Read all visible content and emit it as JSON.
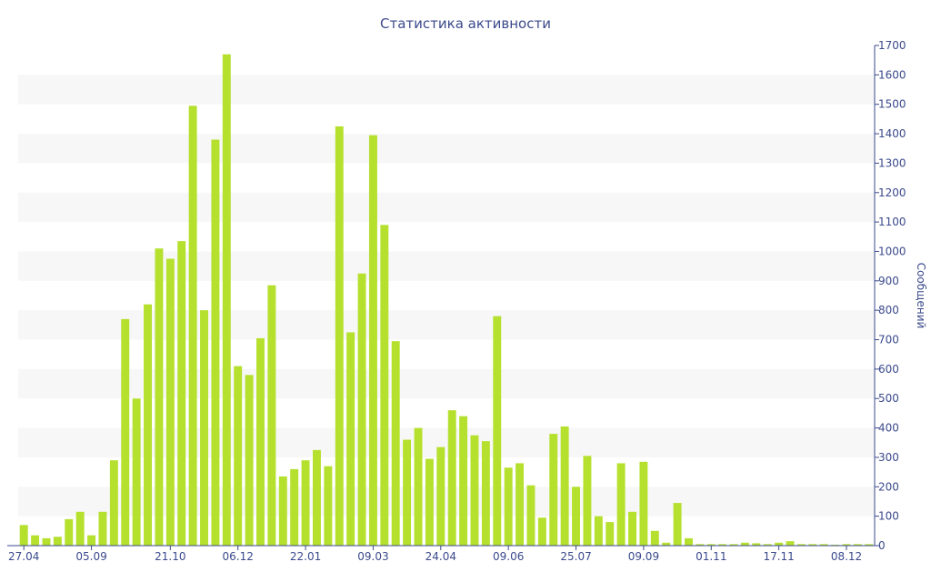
{
  "chart_data": {
    "type": "bar",
    "title": "Статистика активности",
    "xlabel": "",
    "ylabel": "Сообщений",
    "ylim": [
      0,
      1700
    ],
    "y_ticks": [
      0,
      100,
      200,
      300,
      400,
      500,
      600,
      700,
      800,
      900,
      1000,
      1100,
      1200,
      1300,
      1400,
      1500,
      1600,
      1700
    ],
    "y_axis_position": "right",
    "x_tick_labels": [
      {
        "label": "27.04",
        "bar_index": 0
      },
      {
        "label": "05.09",
        "bar_index": 6
      },
      {
        "label": "21.10",
        "bar_index": 13
      },
      {
        "label": "06.12",
        "bar_index": 19
      },
      {
        "label": "22.01",
        "bar_index": 25
      },
      {
        "label": "09.03",
        "bar_index": 31
      },
      {
        "label": "24.04",
        "bar_index": 37
      },
      {
        "label": "09.06",
        "bar_index": 43
      },
      {
        "label": "25.07",
        "bar_index": 49
      },
      {
        "label": "09.09",
        "bar_index": 55
      },
      {
        "label": "01.11",
        "bar_index": 61
      },
      {
        "label": "17.11",
        "bar_index": 67
      },
      {
        "label": "08.12",
        "bar_index": 73
      }
    ],
    "grid": "alternating horizontal bands",
    "bar_color": "#b5e02d",
    "band_color": "#f7f7f7",
    "text_color": "#3b4a8c",
    "values": [
      70,
      35,
      25,
      30,
      90,
      115,
      35,
      115,
      290,
      770,
      500,
      820,
      1010,
      975,
      1035,
      1495,
      800,
      1380,
      1670,
      610,
      580,
      705,
      885,
      235,
      260,
      290,
      325,
      270,
      1425,
      725,
      925,
      1395,
      1090,
      695,
      360,
      400,
      295,
      335,
      460,
      440,
      375,
      355,
      780,
      265,
      280,
      205,
      95,
      380,
      405,
      200,
      305,
      100,
      80,
      280,
      115,
      285,
      50,
      10,
      145,
      25,
      5,
      5,
      5,
      5,
      10,
      8,
      5,
      10,
      15,
      5,
      5,
      5,
      3,
      5,
      5,
      5
    ]
  }
}
